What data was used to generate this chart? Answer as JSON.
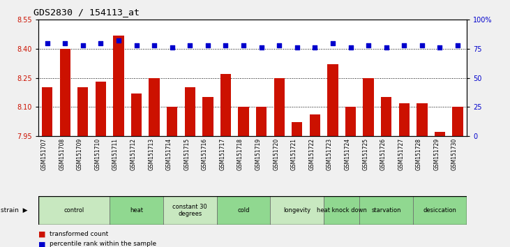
{
  "title": "GDS2830 / 154113_at",
  "categories": [
    "GSM151707",
    "GSM151708",
    "GSM151709",
    "GSM151710",
    "GSM151711",
    "GSM151712",
    "GSM151713",
    "GSM151714",
    "GSM151715",
    "GSM151716",
    "GSM151717",
    "GSM151718",
    "GSM151719",
    "GSM151720",
    "GSM151721",
    "GSM151722",
    "GSM151723",
    "GSM151724",
    "GSM151725",
    "GSM151726",
    "GSM151727",
    "GSM151728",
    "GSM151729",
    "GSM151730"
  ],
  "bar_values": [
    8.2,
    8.4,
    8.2,
    8.23,
    8.47,
    8.17,
    8.25,
    8.1,
    8.2,
    8.15,
    8.27,
    8.1,
    8.1,
    8.25,
    8.02,
    8.06,
    8.32,
    8.1,
    8.25,
    8.15,
    8.12,
    8.12,
    7.97,
    8.1
  ],
  "percentile_values": [
    80,
    80,
    78,
    80,
    82,
    78,
    78,
    76,
    78,
    78,
    78,
    78,
    76,
    78,
    76,
    76,
    80,
    76,
    78,
    76,
    78,
    78,
    76,
    78
  ],
  "groups": [
    {
      "label": "control",
      "start": 0,
      "end": 4
    },
    {
      "label": "heat",
      "start": 4,
      "end": 7
    },
    {
      "label": "constant 30\ndegrees",
      "start": 7,
      "end": 10
    },
    {
      "label": "cold",
      "start": 10,
      "end": 13
    },
    {
      "label": "longevity",
      "start": 13,
      "end": 16
    },
    {
      "label": "heat knock down",
      "start": 16,
      "end": 18
    },
    {
      "label": "starvation",
      "start": 18,
      "end": 21
    },
    {
      "label": "desiccation",
      "start": 21,
      "end": 24
    }
  ],
  "ylim": [
    7.95,
    8.55
  ],
  "yticks": [
    7.95,
    8.1,
    8.25,
    8.4,
    8.55
  ],
  "y2_ticks": [
    0,
    25,
    50,
    75,
    100
  ],
  "bar_color": "#cc1100",
  "dot_color": "#0000cc",
  "bg_color": "#f0f0f0",
  "plot_bg": "#ffffff",
  "group_color_light": "#c8e8c0",
  "group_color_dark": "#90d890",
  "bar_width": 0.6,
  "grid_yticks": [
    8.1,
    8.25,
    8.4
  ]
}
